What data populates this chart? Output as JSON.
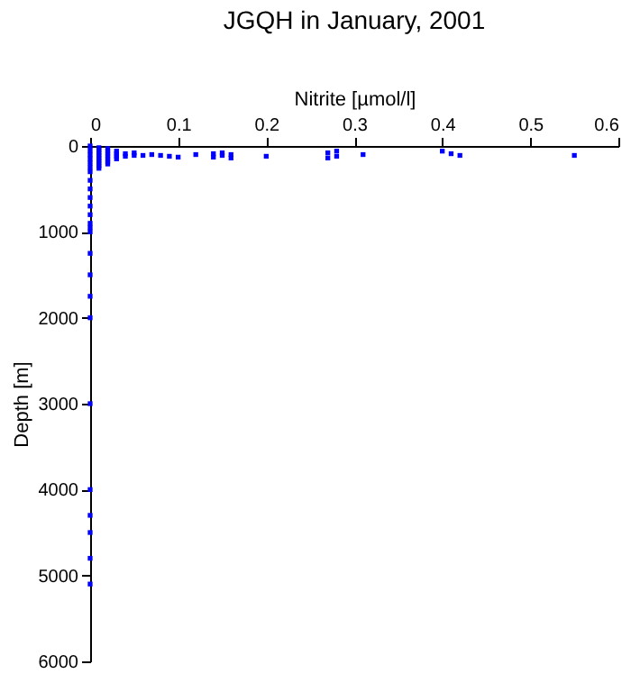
{
  "chart_data": {
    "type": "scatter",
    "title": "JGQH in January, 2001",
    "xlabel": "Nitrite [µmol/l]",
    "ylabel": "Depth [m]",
    "xlim": [
      0,
      0.6
    ],
    "xticks": [
      0,
      0.1,
      0.2,
      0.3,
      0.4,
      0.5,
      0.6
    ],
    "ylim": [
      6000,
      0
    ],
    "yticks": [
      0,
      1000,
      2000,
      3000,
      4000,
      5000,
      6000
    ],
    "marker": "square",
    "grid": false,
    "series": [
      {
        "color": "#0000ff",
        "x": [
          0,
          0,
          0,
          0,
          0,
          0,
          0,
          0,
          0,
          0,
          0,
          0,
          0,
          0,
          0,
          0,
          0,
          0,
          0,
          0,
          0,
          0,
          0,
          0,
          0,
          0.01,
          0.01,
          0.01,
          0.01,
          0.01,
          0.01,
          0.01,
          0.01,
          0.01,
          0.02,
          0.02,
          0.02,
          0.02,
          0.02,
          0.02,
          0.02,
          0.03,
          0.03,
          0.03,
          0.03,
          0.04,
          0.04,
          0.05,
          0.05,
          0.06,
          0.07,
          0.08,
          0.09,
          0.1,
          0.12,
          0.14,
          0.14,
          0.15,
          0.15,
          0.16,
          0.16,
          0.2,
          0.27,
          0.27,
          0.28,
          0.28,
          0.31,
          0.4,
          0.41,
          0.42,
          0.55
        ],
        "values": [
          0,
          50,
          100,
          150,
          200,
          250,
          300,
          400,
          500,
          600,
          700,
          800,
          900,
          950,
          1000,
          1250,
          1500,
          1750,
          2000,
          3000,
          4000,
          4300,
          4500,
          4800,
          5100,
          20,
          50,
          80,
          110,
          140,
          170,
          200,
          230,
          260,
          30,
          60,
          90,
          120,
          150,
          180,
          210,
          60,
          90,
          120,
          150,
          90,
          120,
          80,
          110,
          110,
          100,
          110,
          120,
          130,
          100,
          90,
          130,
          80,
          110,
          100,
          140,
          120,
          80,
          140,
          60,
          120,
          100,
          60,
          90,
          110,
          110
        ]
      }
    ]
  }
}
